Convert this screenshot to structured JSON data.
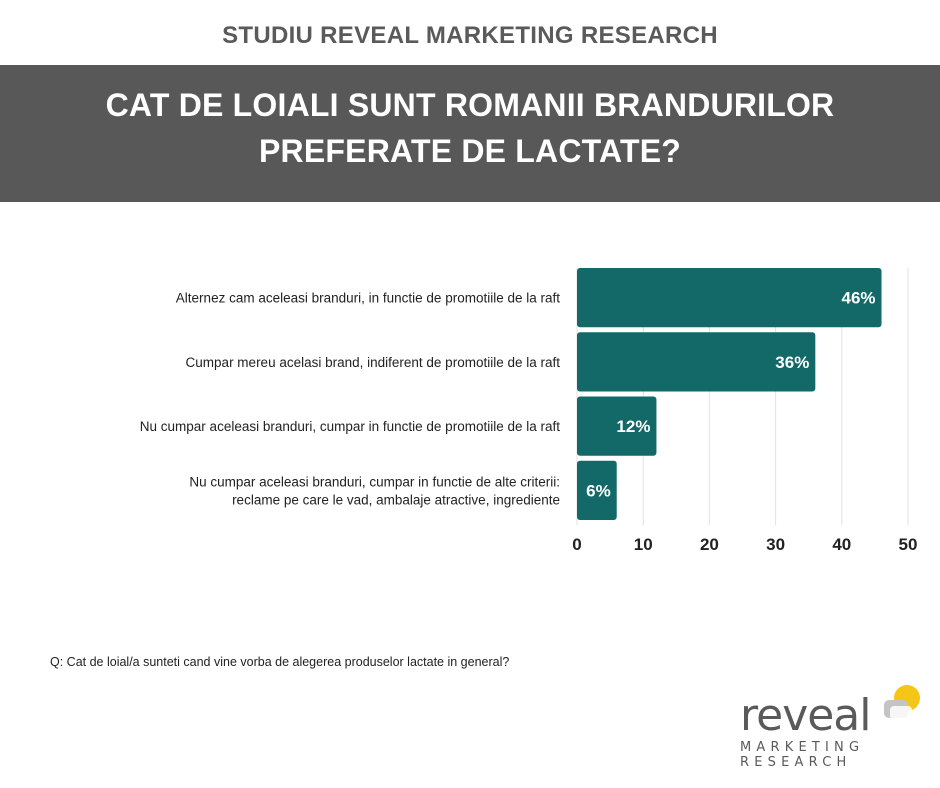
{
  "header": {
    "study_title": "STUDIU REVEAL MARKETING RESEARCH",
    "title_line1": "CAT DE LOIALI SUNT ROMANII BRANDURILOR",
    "title_line2": "PREFERATE DE LACTATE?"
  },
  "chart_data": {
    "type": "bar",
    "orientation": "horizontal",
    "categories": [
      [
        "Alternez cam aceleasi branduri, in functie de promotiile de la raft"
      ],
      [
        "Cumpar mereu acelasi brand, indiferent de promotiile de la raft"
      ],
      [
        "Nu cumpar aceleasi branduri, cumpar in functie de promotiile de la raft"
      ],
      [
        "Nu cumpar aceleasi branduri, cumpar in functie de alte criterii:",
        "reclame pe care le vad, ambalaje atractive, ingrediente"
      ]
    ],
    "values": [
      46,
      36,
      12,
      6
    ],
    "value_labels": [
      "46%",
      "36%",
      "12%",
      "6%"
    ],
    "xlim": [
      0,
      50
    ],
    "xticks": [
      0,
      10,
      20,
      30,
      40,
      50
    ],
    "grid": true,
    "bar_color": "#136868"
  },
  "question": "Q: Cat de loial/a sunteti cand vine vorba de alegerea produselor lactate in general?",
  "logo": {
    "word": "reveal",
    "line1": "MARKETING",
    "line2": "RESEARCH",
    "accent_color": "#f5c518"
  }
}
